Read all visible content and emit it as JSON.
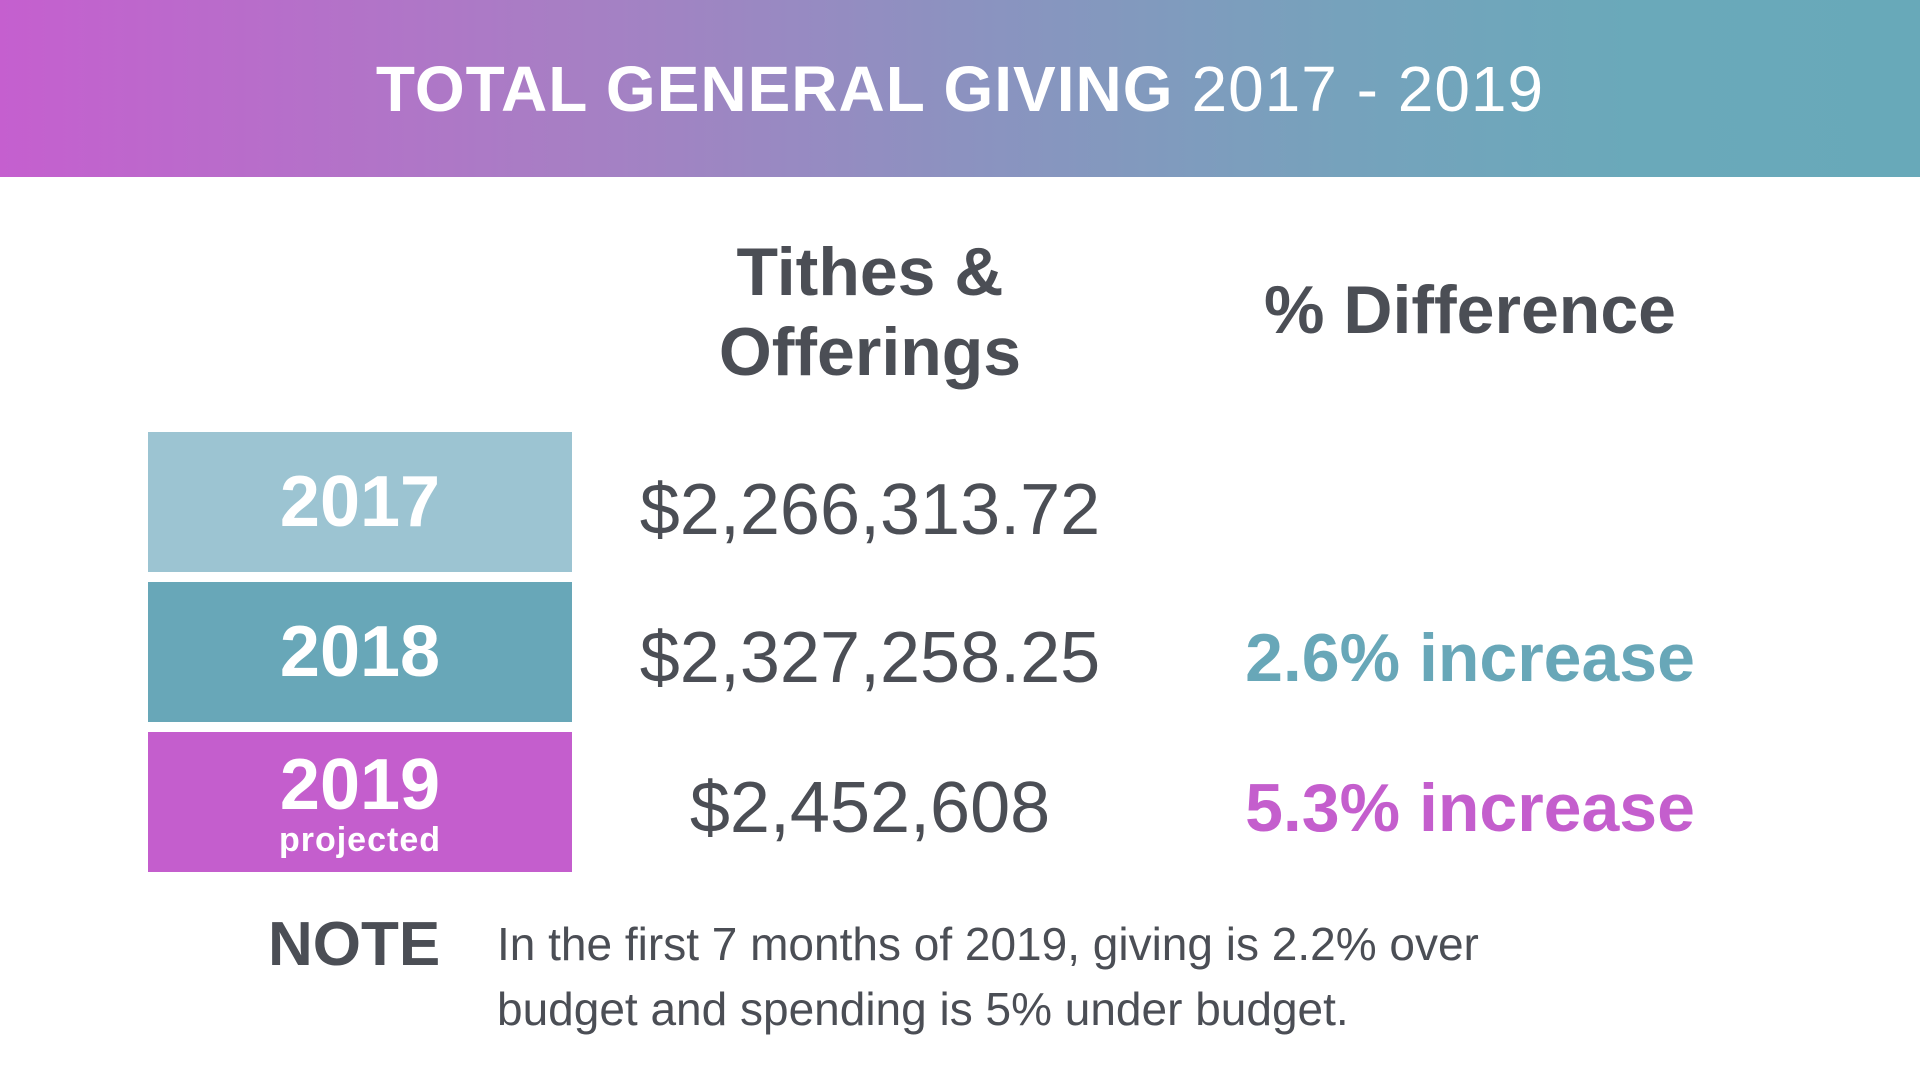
{
  "banner": {
    "title_bold": "TOTAL GENERAL GIVING",
    "title_years": "2017 - 2019",
    "gradient_start": "#c55fcf",
    "gradient_end": "#68a9b9"
  },
  "headers": {
    "tithes_line1": "Tithes &",
    "tithes_line2": "Offerings",
    "difference": "% Difference"
  },
  "rows": [
    {
      "year": "2017",
      "sublabel": "",
      "amount": "$2,266,313.72",
      "difference": "",
      "color": "#9cc4d2"
    },
    {
      "year": "2018",
      "sublabel": "",
      "amount": "$2,327,258.25",
      "difference": "2.6% increase",
      "color": "#68a7b8",
      "difference_color": "#68a7b8"
    },
    {
      "year": "2019",
      "sublabel": "projected",
      "amount": "$2,452,608",
      "difference": "5.3% increase",
      "color": "#c45ecd",
      "difference_color": "#c45ecd"
    }
  ],
  "note": {
    "label": "NOTE",
    "line1": "In the first 7 months of 2019, giving is 2.2% over",
    "line2": "budget and spending is 5% under budget."
  },
  "colors": {
    "text_dark": "#4b4e55",
    "background": "#ffffff"
  }
}
